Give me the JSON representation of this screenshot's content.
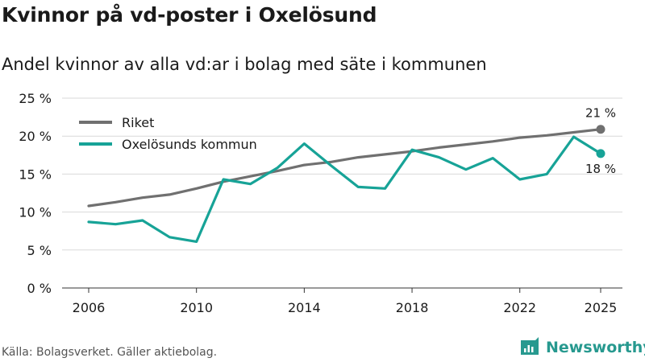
{
  "header": {
    "title": "Kvinnor på vd-poster i Oxelösund",
    "subtitle": "Andel kvinnor av alla vd:ar i bolag med säte i kommunen"
  },
  "footer": {
    "source": "Källa: Bolagsverket. Gäller aktiebolag.",
    "brand": "Newsworthy"
  },
  "colors": {
    "riket": "#707070",
    "oxelosund": "#17a397",
    "grid": "#d9d9d9",
    "brand": "#27998f"
  },
  "chart_data": {
    "type": "line",
    "title": "Kvinnor på vd-poster i Oxelösund",
    "xlabel": "",
    "ylabel": "",
    "xlim": [
      2006,
      2025
    ],
    "ylim": [
      0,
      25
    ],
    "x_ticks": [
      2006,
      2010,
      2014,
      2018,
      2022,
      2025
    ],
    "y_ticks": [
      0,
      5,
      10,
      15,
      20,
      25
    ],
    "y_tick_labels": [
      "0 %",
      "5 %",
      "10 %",
      "15 %",
      "20 %",
      "25 %"
    ],
    "grid": true,
    "legend_position": "top-left",
    "series": [
      {
        "name": "Riket",
        "x": [
          2006,
          2007,
          2008,
          2009,
          2010,
          2011,
          2012,
          2013,
          2014,
          2015,
          2016,
          2017,
          2018,
          2019,
          2020,
          2021,
          2022,
          2023,
          2024,
          2025
        ],
        "values": [
          10.8,
          11.3,
          11.9,
          12.3,
          13.1,
          14.0,
          14.7,
          15.4,
          16.2,
          16.6,
          17.2,
          17.6,
          18.0,
          18.5,
          18.9,
          19.3,
          19.8,
          20.1,
          20.5,
          20.9
        ],
        "end_label": "21 %"
      },
      {
        "name": "Oxelösunds kommun",
        "x": [
          2006,
          2007,
          2008,
          2009,
          2010,
          2011,
          2012,
          2013,
          2014,
          2015,
          2016,
          2017,
          2018,
          2019,
          2020,
          2021,
          2022,
          2023,
          2024,
          2025
        ],
        "values": [
          8.7,
          8.4,
          8.9,
          6.7,
          6.1,
          14.3,
          13.7,
          15.8,
          19.0,
          16.1,
          13.3,
          13.1,
          18.2,
          17.2,
          15.6,
          17.1,
          14.3,
          15.0,
          19.9,
          17.7
        ],
        "end_label": "18 %"
      }
    ]
  }
}
